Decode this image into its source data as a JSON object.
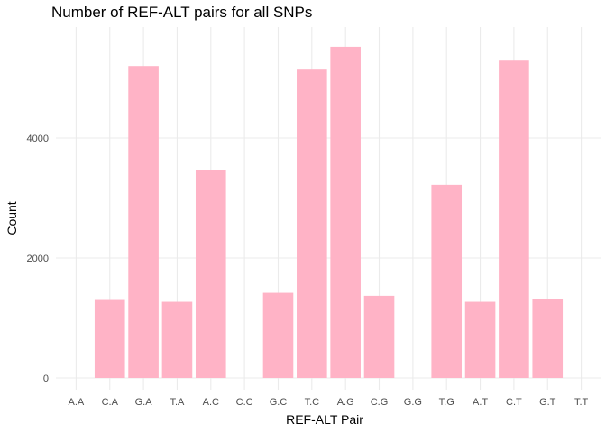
{
  "chart_data": {
    "type": "bar",
    "title": "Number of REF-ALT pairs for all SNPs",
    "xlabel": "REF-ALT Pair",
    "ylabel": "Count",
    "categories": [
      "A.A",
      "C.A",
      "G.A",
      "T.A",
      "A.C",
      "C.C",
      "G.C",
      "T.C",
      "A.G",
      "C.G",
      "G.G",
      "T.G",
      "A.T",
      "C.T",
      "G.T",
      "T.T"
    ],
    "values": [
      0,
      1300,
      5200,
      1270,
      3460,
      0,
      1420,
      5140,
      5520,
      1370,
      0,
      3220,
      1270,
      5290,
      1310,
      0
    ],
    "yticks": [
      0,
      2000,
      4000
    ],
    "ylim": [
      0,
      5800
    ],
    "grid": true,
    "colors": {
      "bar": "#ffb3c6",
      "grid": "#ebebeb"
    }
  }
}
